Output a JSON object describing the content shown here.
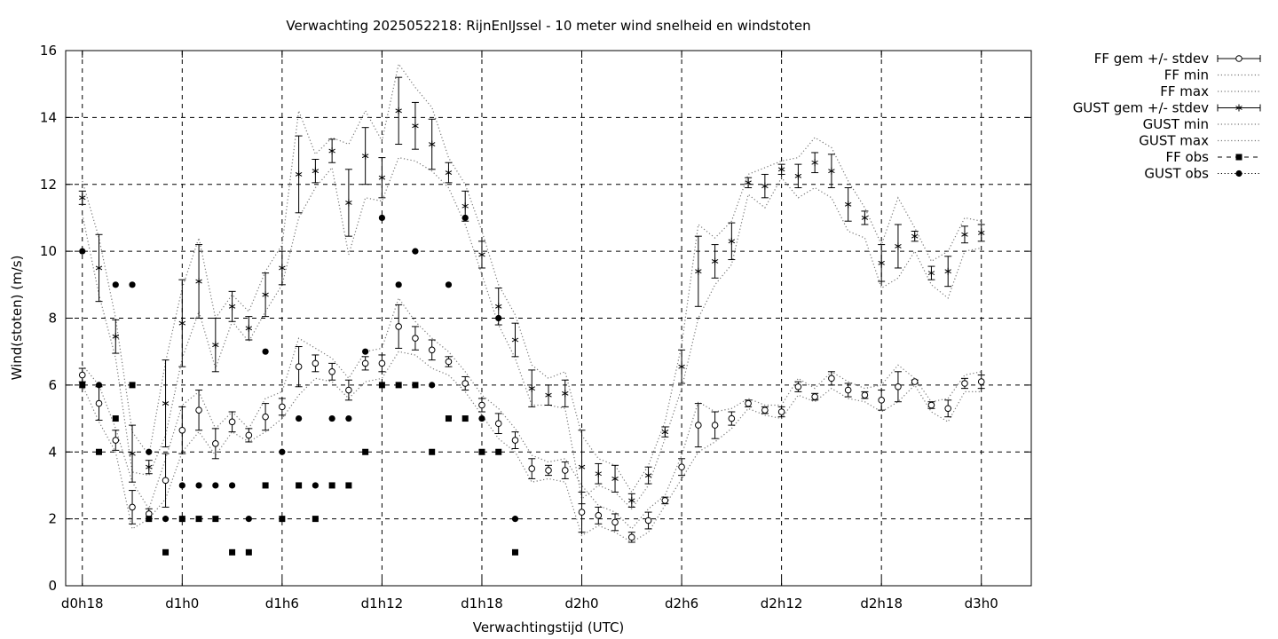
{
  "chart_data": {
    "type": "line",
    "title": "Verwachting 2025052218: RijnEnIJssel - 10 meter wind snelheid en windstoten",
    "xlabel": "Verwachtingstijd (UTC)",
    "ylabel": "Wind(stoten) (m/s)",
    "ylim": [
      0,
      16
    ],
    "yticks": [
      0,
      2,
      4,
      6,
      8,
      10,
      12,
      14,
      16
    ],
    "xlim": [
      -1,
      57
    ],
    "xticks": [
      {
        "x": 0,
        "label": "d0h18"
      },
      {
        "x": 6,
        "label": "d1h0"
      },
      {
        "x": 12,
        "label": "d1h6"
      },
      {
        "x": 18,
        "label": "d1h12"
      },
      {
        "x": 24,
        "label": "d1h18"
      },
      {
        "x": 30,
        "label": "d2h0"
      },
      {
        "x": 36,
        "label": "d2h6"
      },
      {
        "x": 42,
        "label": "d2h12"
      },
      {
        "x": 48,
        "label": "d2h18"
      },
      {
        "x": 54,
        "label": "d3h0"
      }
    ],
    "x_unit": "hours after d0h18",
    "grid": true,
    "legend_position": "outside-right",
    "legend": [
      "FF gem +/- stdev",
      "FF min",
      "FF max",
      "GUST gem +/- stdev",
      "GUST min",
      "GUST max",
      "FF obs",
      "GUST obs"
    ],
    "ff_mean": {
      "x": [
        0,
        1,
        2,
        3,
        4,
        5,
        6,
        7,
        8,
        9,
        10,
        11,
        12,
        13,
        14,
        15,
        16,
        17,
        18,
        19,
        20,
        21,
        22,
        23,
        24,
        25,
        26,
        27,
        28,
        29,
        30,
        31,
        32,
        33,
        34,
        35,
        36,
        37,
        38,
        39,
        40,
        41,
        42,
        43,
        44,
        45,
        46,
        47,
        48,
        49,
        50,
        51,
        52,
        53,
        54
      ],
      "mean": [
        6.3,
        5.45,
        4.35,
        2.35,
        2.15,
        3.15,
        4.65,
        5.25,
        4.25,
        4.9,
        4.5,
        5.05,
        5.35,
        6.55,
        6.65,
        6.4,
        5.85,
        6.65,
        6.65,
        7.75,
        7.4,
        7.05,
        6.7,
        6.05,
        5.4,
        4.85,
        4.35,
        3.5,
        3.45,
        3.45,
        2.2,
        2.1,
        1.9,
        1.45,
        1.95,
        2.55,
        3.55,
        4.8,
        4.8,
        5.0,
        5.45,
        5.25,
        5.2,
        5.95,
        5.65,
        6.2,
        5.85,
        5.7,
        5.55,
        5.95,
        6.1,
        5.4,
        5.3,
        6.05,
        6.1
      ],
      "stdev": [
        0.2,
        0.5,
        0.3,
        0.5,
        0.15,
        0.8,
        0.7,
        0.6,
        0.45,
        0.3,
        0.2,
        0.4,
        0.25,
        0.6,
        0.25,
        0.25,
        0.3,
        0.2,
        0.25,
        0.65,
        0.35,
        0.3,
        0.15,
        0.2,
        0.2,
        0.3,
        0.25,
        0.3,
        0.15,
        0.25,
        0.6,
        0.25,
        0.25,
        0.15,
        0.25,
        0.1,
        0.25,
        0.65,
        0.4,
        0.2,
        0.1,
        0.1,
        0.15,
        0.15,
        0.1,
        0.2,
        0.2,
        0.1,
        0.3,
        0.45,
        0.05,
        0.1,
        0.25,
        0.15,
        0.2
      ],
      "min": [
        6.0,
        4.9,
        4.0,
        1.7,
        2.0,
        2.6,
        4.0,
        4.6,
        3.9,
        4.6,
        4.3,
        4.6,
        5.0,
        5.7,
        6.2,
        6.1,
        5.6,
        6.1,
        6.2,
        7.0,
        6.9,
        6.5,
        6.3,
        5.8,
        5.1,
        4.4,
        4.0,
        3.1,
        3.2,
        3.1,
        1.5,
        1.8,
        1.6,
        1.3,
        1.6,
        2.4,
        3.2,
        4.0,
        4.3,
        4.7,
        5.3,
        5.1,
        5.0,
        5.7,
        5.5,
        5.9,
        5.6,
        5.5,
        5.2,
        5.5,
        6.0,
        5.2,
        4.9,
        5.8,
        5.8
      ],
      "max": [
        6.6,
        6.0,
        4.7,
        3.1,
        2.3,
        3.8,
        5.4,
        5.8,
        4.7,
        5.2,
        4.7,
        5.6,
        5.8,
        7.4,
        7.1,
        6.8,
        6.2,
        7.0,
        7.1,
        8.6,
        7.9,
        7.4,
        7.0,
        6.4,
        5.7,
        5.3,
        4.7,
        3.9,
        3.7,
        3.8,
        3.0,
        2.4,
        2.2,
        1.7,
        2.3,
        2.7,
        3.9,
        5.5,
        5.2,
        5.3,
        5.6,
        5.4,
        5.4,
        6.2,
        5.9,
        6.4,
        6.1,
        5.9,
        6.0,
        6.6,
        6.2,
        5.5,
        5.6,
        6.3,
        6.4
      ]
    },
    "gust_mean": {
      "x": [
        0,
        1,
        2,
        3,
        4,
        5,
        6,
        7,
        8,
        9,
        10,
        11,
        12,
        13,
        14,
        15,
        16,
        17,
        18,
        19,
        20,
        21,
        22,
        23,
        24,
        25,
        26,
        27,
        28,
        29,
        30,
        31,
        32,
        33,
        34,
        35,
        36,
        37,
        38,
        39,
        40,
        41,
        42,
        43,
        44,
        45,
        46,
        47,
        48,
        49,
        50,
        51,
        52,
        53,
        54
      ],
      "mean": [
        11.6,
        9.5,
        7.45,
        3.95,
        3.55,
        5.45,
        7.85,
        9.1,
        7.2,
        8.35,
        7.7,
        8.7,
        9.5,
        12.3,
        12.4,
        13.0,
        11.45,
        12.85,
        12.2,
        14.2,
        13.75,
        13.2,
        12.35,
        11.35,
        9.9,
        8.35,
        7.35,
        5.9,
        5.7,
        5.75,
        3.55,
        3.35,
        3.2,
        2.55,
        3.3,
        4.6,
        6.55,
        9.4,
        9.7,
        10.3,
        12.05,
        11.95,
        12.45,
        12.25,
        12.65,
        12.4,
        11.4,
        11.0,
        9.65,
        10.15,
        10.45,
        9.35,
        9.4,
        10.5,
        10.55
      ],
      "stdev": [
        0.2,
        1.0,
        0.5,
        0.85,
        0.2,
        1.3,
        1.3,
        1.1,
        0.8,
        0.45,
        0.35,
        0.65,
        0.5,
        1.15,
        0.35,
        0.35,
        1.0,
        0.85,
        0.6,
        1.0,
        0.7,
        0.75,
        0.3,
        0.45,
        0.4,
        0.55,
        0.5,
        0.55,
        0.3,
        0.4,
        1.1,
        0.3,
        0.4,
        0.2,
        0.25,
        0.15,
        0.5,
        1.05,
        0.5,
        0.55,
        0.15,
        0.35,
        0.15,
        0.35,
        0.3,
        0.5,
        0.5,
        0.2,
        0.55,
        0.65,
        0.15,
        0.2,
        0.45,
        0.25,
        0.25
      ],
      "min": [
        11.1,
        8.7,
        6.8,
        3.4,
        3.3,
        4.5,
        6.8,
        8.2,
        6.5,
        7.9,
        7.3,
        8.2,
        9.0,
        11.0,
        11.9,
        12.5,
        9.9,
        11.6,
        11.5,
        12.8,
        12.7,
        12.4,
        11.9,
        10.8,
        9.3,
        7.8,
        6.8,
        5.4,
        5.4,
        5.3,
        2.6,
        3.0,
        2.8,
        2.3,
        3.0,
        4.4,
        5.9,
        8.0,
        9.0,
        9.6,
        11.7,
        11.3,
        12.2,
        11.6,
        11.9,
        11.6,
        10.6,
        10.4,
        8.9,
        9.2,
        10.0,
        9.0,
        8.6,
        10.0,
        10.1
      ],
      "max": [
        12.1,
        10.4,
        8.0,
        4.6,
        3.9,
        6.7,
        8.9,
        10.4,
        8.0,
        8.7,
        8.2,
        9.4,
        10.2,
        14.2,
        12.9,
        13.4,
        13.2,
        14.2,
        13.3,
        15.6,
        14.9,
        14.3,
        12.8,
        12.0,
        10.6,
        9.0,
        8.1,
        6.6,
        6.2,
        6.4,
        4.5,
        3.8,
        3.6,
        2.8,
        3.6,
        4.9,
        7.2,
        10.8,
        10.4,
        10.9,
        12.3,
        12.5,
        12.7,
        12.8,
        13.4,
        13.1,
        12.1,
        11.3,
        10.2,
        11.6,
        10.7,
        9.7,
        10.0,
        11.0,
        10.9
      ]
    },
    "ff_obs": {
      "x": [
        0,
        1,
        2,
        3,
        4,
        5,
        6,
        7,
        8,
        9,
        10,
        11,
        12,
        13,
        14,
        15,
        16,
        17,
        18,
        19,
        20,
        21,
        22,
        23,
        24,
        25,
        26
      ],
      "y": [
        6,
        4,
        5,
        6,
        2,
        1,
        2,
        2,
        2,
        1,
        1,
        3,
        2,
        3,
        2,
        3,
        3,
        4,
        6,
        6,
        6,
        4,
        5,
        5,
        4,
        4,
        1
      ]
    },
    "gust_obs": {
      "x": [
        0,
        1,
        2,
        3,
        4,
        5,
        6,
        7,
        8,
        9,
        10,
        11,
        12,
        13,
        14,
        15,
        16,
        17,
        18,
        19,
        20,
        21,
        22,
        23,
        24,
        25,
        26
      ],
      "y": [
        10,
        6,
        9,
        9,
        4,
        2,
        3,
        3,
        3,
        3,
        2,
        7,
        4,
        5,
        3,
        5,
        5,
        7,
        11,
        9,
        10,
        6,
        9,
        11,
        5,
        8,
        2
      ]
    }
  }
}
